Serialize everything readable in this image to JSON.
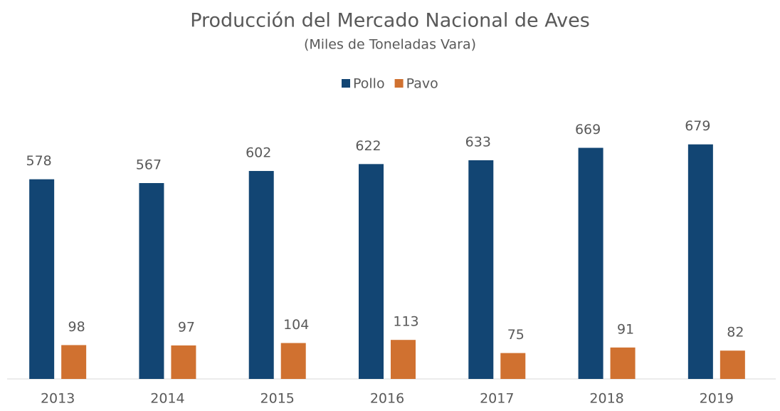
{
  "chart_data": {
    "type": "bar",
    "title": "Producción del Mercado Nacional de Aves",
    "subtitle": "(Miles de Toneladas Vara)",
    "categories": [
      "2013",
      "2014",
      "2015",
      "2016",
      "2017",
      "2018",
      "2019"
    ],
    "series": [
      {
        "name": "Pollo",
        "color": "#124573",
        "values": [
          578,
          567,
          602,
          622,
          633,
          669,
          679
        ]
      },
      {
        "name": "Pavo",
        "color": "#D07130",
        "values": [
          98,
          97,
          104,
          113,
          75,
          91,
          82
        ]
      }
    ],
    "ylim": [
      0,
      800
    ],
    "legend": "top"
  }
}
